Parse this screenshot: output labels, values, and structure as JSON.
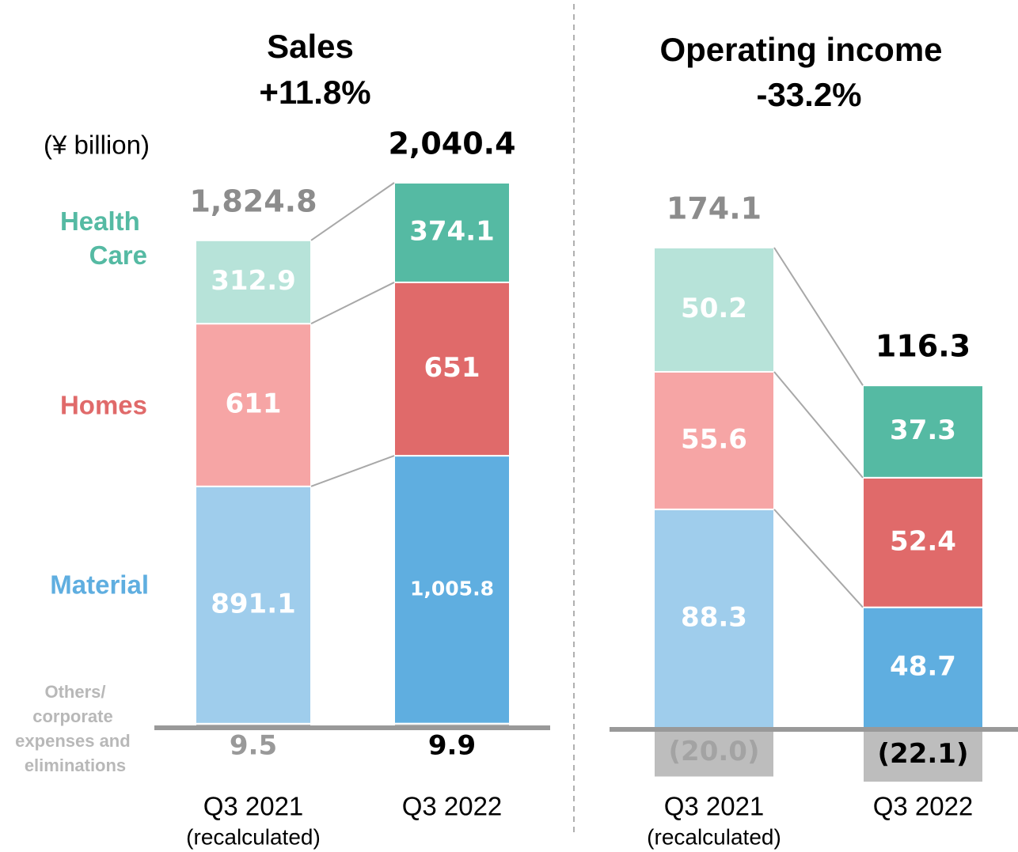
{
  "chart_data": [
    {
      "type": "bar",
      "stacked": true,
      "title": "Sales",
      "subtitle": "+11.8%",
      "unit": "(¥ billion)",
      "categories": [
        "Q3 2021",
        "Q3 2022"
      ],
      "category_notes": [
        "(recalculated)",
        null
      ],
      "series": [
        {
          "name": "Others/corporate expenses and eliminations",
          "colors": [
            "#b8b8b8",
            "#b8b8b8"
          ],
          "label_colors": [
            "#999999",
            "#000000"
          ],
          "values": [
            9.5,
            9.9
          ]
        },
        {
          "name": "Material",
          "colors": [
            "#9fcdec",
            "#5faee0"
          ],
          "values": [
            891.1,
            1005.8
          ],
          "value_labels": [
            "891.1",
            "1,005.8"
          ]
        },
        {
          "name": "Homes",
          "colors": [
            "#f6a5a5",
            "#e06a6a"
          ],
          "values": [
            611,
            651
          ]
        },
        {
          "name": "Health Care",
          "colors": [
            "#b7e3d9",
            "#55baa3"
          ],
          "values": [
            312.9,
            374.1
          ]
        }
      ],
      "totals": [
        1824.8,
        2040.4
      ],
      "total_labels": [
        "1,824.8",
        "2,040.4"
      ],
      "total_colors": [
        "#8c8c8c",
        "#000000"
      ]
    },
    {
      "type": "bar",
      "stacked": true,
      "title": "Operating income",
      "subtitle": "-33.2%",
      "categories": [
        "Q3 2021",
        "Q3 2022"
      ],
      "category_notes": [
        "(recalculated)",
        null
      ],
      "series": [
        {
          "colors": [
            "#bdbdbd",
            "#bdbdbd"
          ],
          "label_colors": [
            "#a3a3a3",
            "#000000"
          ],
          "values": [
            -20.0,
            -22.1
          ],
          "value_labels": [
            "(20.0)",
            "(22.1)"
          ]
        },
        {
          "colors": [
            "#9fcdec",
            "#5faee0"
          ],
          "values": [
            88.3,
            48.7
          ]
        },
        {
          "colors": [
            "#f6a5a5",
            "#e06a6a"
          ],
          "values": [
            55.6,
            52.4
          ]
        },
        {
          "colors": [
            "#b7e3d9",
            "#55baa3"
          ],
          "values": [
            50.2,
            37.3
          ]
        }
      ],
      "totals": [
        174.1,
        116.3
      ],
      "total_colors": [
        "#8c8c8c",
        "#000000"
      ]
    }
  ]
}
